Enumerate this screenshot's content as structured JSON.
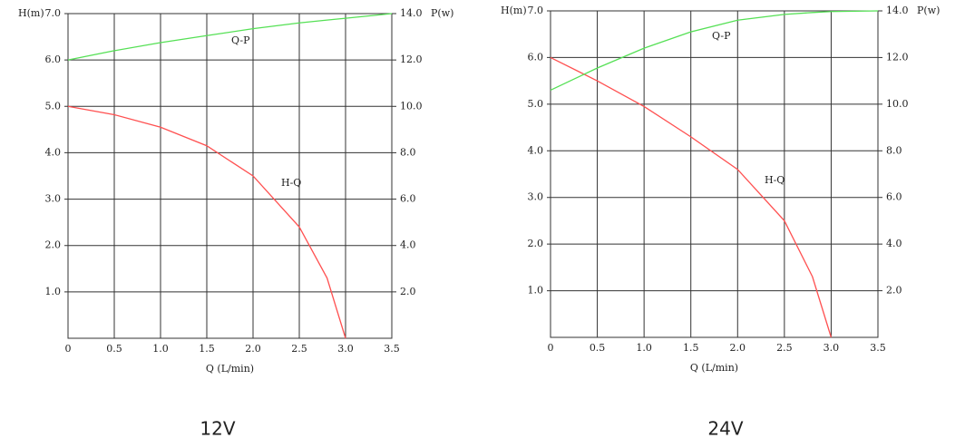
{
  "chart_data": [
    {
      "type": "line",
      "caption": "12V",
      "ylabel": "H(m)",
      "y2label": "P(w)",
      "xlabel": "Q (L/min)",
      "x": [
        0,
        0.5,
        1.0,
        1.5,
        2.0,
        2.5,
        2.8,
        3.0,
        3.5
      ],
      "series": [
        {
          "name": "H-Q",
          "color": "#ff5050",
          "values": [
            5.0,
            4.82,
            4.55,
            4.15,
            3.5,
            2.4,
            1.3,
            0,
            null
          ]
        },
        {
          "name": "Q-P",
          "color": "#55e055",
          "axis": "y2",
          "values": [
            12.0,
            12.4,
            12.75,
            13.05,
            13.35,
            13.6,
            13.72,
            13.8,
            14.0
          ]
        }
      ],
      "xlim": [
        0,
        3.5
      ],
      "ylim": [
        0,
        7
      ],
      "y2lim": [
        0,
        14
      ],
      "xticks": [
        0,
        0.5,
        {
          "value": 1,
          "label": "1.0"
        },
        1.5,
        {
          "value": 2,
          "label": "2.0"
        },
        2.5,
        {
          "value": 3,
          "label": "3.0"
        },
        3.5
      ],
      "yticks": [
        {
          "value": 1,
          "label": "1.0"
        },
        {
          "value": 2,
          "label": "2.0"
        },
        {
          "value": 3,
          "label": "3.0"
        },
        {
          "value": 4,
          "label": "4.0"
        },
        {
          "value": 5,
          "label": "5.0"
        },
        {
          "value": 6,
          "label": "6.0"
        },
        {
          "value": 7,
          "label": "7.0"
        }
      ],
      "y2ticks": [
        {
          "value": 2,
          "label": "2.0"
        },
        {
          "value": 4,
          "label": "4.0"
        },
        {
          "value": 6,
          "label": "6.0"
        },
        {
          "value": 8,
          "label": "8.0"
        },
        {
          "value": 10,
          "label": "10.0"
        },
        {
          "value": 12,
          "label": "12.0"
        },
        {
          "value": 14,
          "label": "14.0"
        }
      ],
      "grid": true
    },
    {
      "type": "line",
      "caption": "24V",
      "ylabel": "H(m)",
      "y2label": "P(w)",
      "xlabel": "Q (L/min)",
      "x": [
        0,
        0.5,
        1.0,
        1.5,
        2.0,
        2.5,
        2.8,
        3.0,
        3.5
      ],
      "series": [
        {
          "name": "H-Q",
          "color": "#ff5050",
          "values": [
            6.0,
            5.5,
            4.95,
            4.3,
            3.6,
            2.5,
            1.3,
            0,
            null
          ]
        },
        {
          "name": "Q-P",
          "color": "#55e055",
          "axis": "y2",
          "values": [
            10.6,
            11.55,
            12.4,
            13.1,
            13.6,
            13.85,
            13.93,
            13.97,
            14.0
          ]
        }
      ],
      "xlim": [
        0,
        3.5
      ],
      "ylim": [
        0,
        7
      ],
      "y2lim": [
        0,
        14
      ],
      "xticks": [
        0,
        0.5,
        {
          "value": 1,
          "label": "1.0"
        },
        1.5,
        {
          "value": 2,
          "label": "2.0"
        },
        2.5,
        {
          "value": 3,
          "label": "3.0"
        },
        3.5
      ],
      "yticks": [
        {
          "value": 1,
          "label": "1.0"
        },
        {
          "value": 2,
          "label": "2.0"
        },
        {
          "value": 3,
          "label": "3.0"
        },
        {
          "value": 4,
          "label": "4.0"
        },
        {
          "value": 5,
          "label": "5.0"
        },
        {
          "value": 6,
          "label": "6.0"
        },
        {
          "value": 7,
          "label": "7.0"
        }
      ],
      "y2ticks": [
        {
          "value": 2,
          "label": "2.0"
        },
        {
          "value": 4,
          "label": "4.0"
        },
        {
          "value": 6,
          "label": "6.0"
        },
        {
          "value": 8,
          "label": "8.0"
        },
        {
          "value": 10,
          "label": "10.0"
        },
        {
          "value": 12,
          "label": "12.0"
        },
        {
          "value": 14,
          "label": "14.0"
        }
      ],
      "grid": true
    }
  ]
}
